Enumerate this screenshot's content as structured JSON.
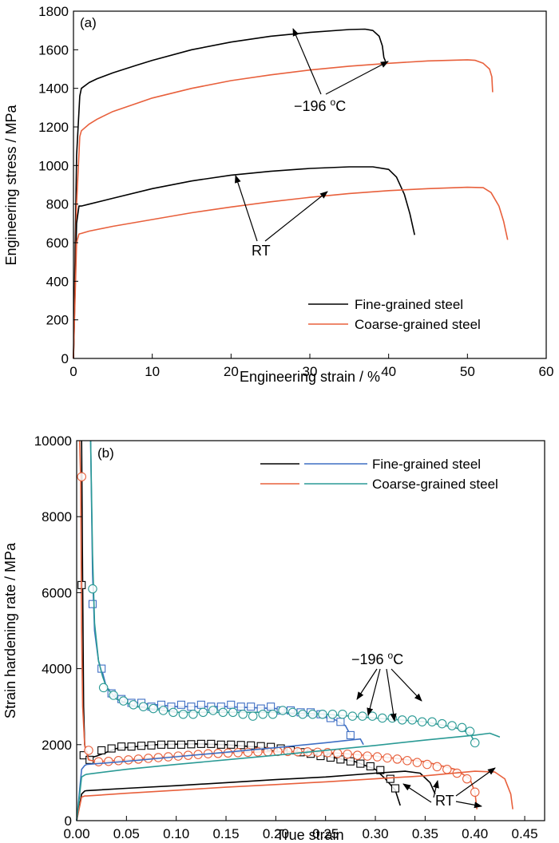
{
  "chart_data": [
    {
      "type": "line",
      "panel_label": "(a)",
      "xlabel": "Engineering strain / %",
      "ylabel": "Engineering stress / MPa",
      "xlim": [
        0,
        60
      ],
      "ylim": [
        0,
        1800
      ],
      "xticks": [
        "0",
        "10",
        "20",
        "30",
        "40",
        "50",
        "60"
      ],
      "yticks": [
        "0",
        "200",
        "400",
        "600",
        "800",
        "1000",
        "1200",
        "1400",
        "1600",
        "1800"
      ],
      "legend": [
        {
          "name": "Fine-grained steel",
          "color": "#000000"
        },
        {
          "name": "Coarse-grained steel",
          "color": "#E8603C"
        }
      ],
      "series": [
        {
          "name": "Fine-grained steel",
          "condition": "-196 °C",
          "color": "#000000",
          "x": [
            0,
            0.4,
            0.8,
            1,
            2,
            3,
            5,
            8,
            10,
            15,
            20,
            25,
            30,
            35,
            37,
            38,
            38.8,
            39.2,
            39.4,
            39.6
          ],
          "y": [
            0,
            1050,
            1360,
            1400,
            1430,
            1450,
            1480,
            1520,
            1545,
            1600,
            1640,
            1670,
            1690,
            1705,
            1707,
            1700,
            1670,
            1620,
            1560,
            1540
          ]
        },
        {
          "name": "Coarse-grained steel",
          "condition": "-196 °C",
          "color": "#E8603C",
          "x": [
            0,
            0.4,
            0.8,
            1,
            2,
            3,
            5,
            10,
            15,
            20,
            25,
            30,
            35,
            40,
            45,
            50,
            51,
            52,
            52.8,
            53.1,
            53.2
          ],
          "y": [
            0,
            800,
            1150,
            1180,
            1215,
            1240,
            1280,
            1350,
            1400,
            1440,
            1470,
            1495,
            1515,
            1530,
            1542,
            1548,
            1545,
            1530,
            1500,
            1460,
            1380
          ]
        },
        {
          "name": "Fine-grained steel",
          "condition": "RT",
          "color": "#000000",
          "x": [
            0,
            0.4,
            0.7,
            1,
            2,
            5,
            10,
            15,
            20,
            25,
            30,
            35,
            38,
            40,
            41,
            42,
            42.7,
            43.3
          ],
          "y": [
            0,
            700,
            790,
            790,
            800,
            830,
            880,
            920,
            950,
            970,
            985,
            993,
            993,
            980,
            940,
            850,
            750,
            640
          ]
        },
        {
          "name": "Coarse-grained steel",
          "condition": "RT",
          "color": "#E8603C",
          "x": [
            0,
            0.4,
            0.7,
            1,
            2,
            5,
            10,
            15,
            20,
            25,
            30,
            35,
            40,
            45,
            50,
            52,
            53,
            54,
            54.6,
            55.1
          ],
          "y": [
            0,
            600,
            645,
            648,
            660,
            685,
            720,
            755,
            785,
            812,
            835,
            855,
            870,
            880,
            887,
            885,
            860,
            790,
            710,
            615
          ]
        }
      ],
      "annotations": [
        {
          "text_prefix": "−196 ",
          "text_sup": "o",
          "text_suffix": "C",
          "points_to": [
            [
              28,
              1705
            ],
            [
              41,
              1535
            ]
          ]
        },
        {
          "text": "RT",
          "points_to": [
            [
              21,
              945
            ],
            [
              33,
              860
            ]
          ]
        }
      ]
    },
    {
      "type": "line",
      "panel_label": "(b)",
      "xlabel": "True strain",
      "ylabel": "Strain hardening rate / MPa",
      "xlim": [
        0,
        0.47
      ],
      "ylim": [
        0,
        10000
      ],
      "xticks": [
        "0.00",
        "0.05",
        "0.10",
        "0.15",
        "0.20",
        "0.25",
        "0.30",
        "0.35",
        "0.40",
        "0.45"
      ],
      "yticks": [
        "0",
        "2000",
        "4000",
        "6000",
        "8000",
        "10000"
      ],
      "legend": [
        {
          "name": "Fine-grained steel",
          "colors": [
            "#000000",
            "#3F6FC4"
          ]
        },
        {
          "name": "Coarse-grained steel",
          "colors": [
            "#E8603C",
            "#2A9A95"
          ]
        }
      ],
      "series": [
        {
          "name": "Fine-grained steel",
          "condition": "RT",
          "color": "#000000",
          "marker": "square",
          "x": [
            0.005,
            0.006,
            0.007,
            0.008,
            0.01,
            0.013,
            0.02,
            0.04,
            0.08,
            0.12,
            0.15,
            0.2,
            0.25,
            0.28,
            0.3,
            0.31,
            0.32,
            0.325
          ],
          "y": [
            10000,
            6200,
            3000,
            2000,
            1750,
            1650,
            1700,
            1900,
            2000,
            2020,
            2000,
            1900,
            1700,
            1550,
            1350,
            1100,
            800,
            400
          ],
          "markers": {
            "x": [
              0.005,
              0.007,
              0.013,
              0.025,
              0.035,
              0.045,
              0.055,
              0.065,
              0.075,
              0.085,
              0.095,
              0.105,
              0.115,
              0.125,
              0.135,
              0.145,
              0.155,
              0.165,
              0.175,
              0.185,
              0.195,
              0.205,
              0.215,
              0.225,
              0.235,
              0.245,
              0.255,
              0.265,
              0.275,
              0.285,
              0.295,
              0.305,
              0.315,
              0.32
            ],
            "y": [
              6200,
              1720,
              1600,
              1850,
              1900,
              1950,
              1950,
              1970,
              1980,
              2000,
              2000,
              2000,
              2010,
              2020,
              2020,
              2000,
              2000,
              1990,
              1980,
              1960,
              1940,
              1900,
              1850,
              1800,
              1760,
              1700,
              1660,
              1610,
              1560,
              1500,
              1430,
              1330,
              1100,
              850
            ]
          }
        },
        {
          "name": "Fine-grained steel",
          "condition": "-196 °C",
          "color": "#3F6FC4",
          "marker": "square",
          "x": [
            0.014,
            0.016,
            0.018,
            0.022,
            0.026,
            0.03,
            0.04,
            0.06,
            0.1,
            0.15,
            0.2,
            0.23,
            0.26,
            0.27,
            0.275
          ],
          "y": [
            10000,
            6500,
            5000,
            4200,
            3900,
            3500,
            3300,
            3100,
            3000,
            3000,
            2950,
            2850,
            2650,
            2500,
            2250
          ],
          "markers": {
            "x": [
              0.016,
              0.025,
              0.035,
              0.045,
              0.055,
              0.065,
              0.075,
              0.085,
              0.095,
              0.105,
              0.115,
              0.125,
              0.135,
              0.145,
              0.155,
              0.165,
              0.175,
              0.185,
              0.195,
              0.205,
              0.215,
              0.225,
              0.235,
              0.245,
              0.255,
              0.265,
              0.275
            ],
            "y": [
              5700,
              4000,
              3350,
              3200,
              3100,
              3100,
              3000,
              3050,
              3000,
              3050,
              3000,
              3050,
              3000,
              3000,
              3050,
              3000,
              3000,
              2950,
              3000,
              2900,
              2900,
              2850,
              2850,
              2800,
              2700,
              2600,
              2250
            ]
          }
        },
        {
          "name": "Coarse-grained steel",
          "condition": "RT",
          "color": "#E8603C",
          "marker": "circle",
          "x": [
            0.003,
            0.004,
            0.005,
            0.006,
            0.008,
            0.012,
            0.02,
            0.05,
            0.1,
            0.15,
            0.2,
            0.25,
            0.3,
            0.35,
            0.38,
            0.395,
            0.4,
            0.402
          ],
          "y": [
            10000,
            9000,
            5000,
            3000,
            2000,
            1600,
            1550,
            1600,
            1700,
            1780,
            1820,
            1800,
            1700,
            1550,
            1350,
            1100,
            750,
            300
          ],
          "markers": {
            "x": [
              0.005,
              0.012,
              0.022,
              0.032,
              0.042,
              0.052,
              0.062,
              0.072,
              0.082,
              0.092,
              0.102,
              0.112,
              0.122,
              0.132,
              0.142,
              0.152,
              0.162,
              0.172,
              0.182,
              0.192,
              0.202,
              0.212,
              0.222,
              0.232,
              0.242,
              0.252,
              0.262,
              0.272,
              0.282,
              0.292,
              0.302,
              0.312,
              0.322,
              0.332,
              0.342,
              0.352,
              0.362,
              0.372,
              0.382,
              0.392,
              0.4
            ],
            "y": [
              9050,
              1850,
              1550,
              1560,
              1580,
              1600,
              1620,
              1640,
              1660,
              1680,
              1700,
              1720,
              1740,
              1760,
              1770,
              1780,
              1790,
              1800,
              1810,
              1815,
              1820,
              1820,
              1815,
              1810,
              1800,
              1790,
              1770,
              1750,
              1720,
              1700,
              1680,
              1650,
              1620,
              1580,
              1530,
              1480,
              1420,
              1350,
              1250,
              1100,
              750
            ]
          }
        },
        {
          "name": "Coarse-grained steel",
          "condition": "-196 °C",
          "color": "#2A9A95",
          "marker": "circle",
          "x": [
            0.014,
            0.016,
            0.018,
            0.022,
            0.026,
            0.03,
            0.04,
            0.06,
            0.1,
            0.15,
            0.2,
            0.25,
            0.3,
            0.35,
            0.38,
            0.395,
            0.4
          ],
          "y": [
            10000,
            7000,
            5200,
            4200,
            3800,
            3500,
            3200,
            3000,
            2850,
            2850,
            2850,
            2800,
            2700,
            2600,
            2450,
            2300,
            2050
          ],
          "markers": {
            "x": [
              0.016,
              0.027,
              0.037,
              0.047,
              0.057,
              0.067,
              0.077,
              0.087,
              0.097,
              0.107,
              0.117,
              0.127,
              0.137,
              0.147,
              0.157,
              0.167,
              0.177,
              0.187,
              0.197,
              0.207,
              0.217,
              0.227,
              0.237,
              0.247,
              0.257,
              0.267,
              0.277,
              0.287,
              0.297,
              0.307,
              0.317,
              0.327,
              0.337,
              0.347,
              0.357,
              0.367,
              0.377,
              0.387,
              0.395,
              0.4
            ],
            "y": [
              6100,
              3500,
              3300,
              3150,
              3050,
              3000,
              2950,
              2900,
              2850,
              2800,
              2800,
              2850,
              2900,
              2850,
              2850,
              2800,
              2750,
              2800,
              2800,
              2900,
              2850,
              2800,
              2800,
              2800,
              2800,
              2800,
              2750,
              2750,
              2750,
              2700,
              2700,
              2650,
              2650,
              2600,
              2600,
              2550,
              2500,
              2450,
              2350,
              2050
            ]
          }
        },
        {
          "name": "Fine-grained steel",
          "condition": "RT",
          "color": "#000000",
          "marker": "none",
          "x": [
            0,
            0.005,
            0.008,
            0.01,
            0.05,
            0.1,
            0.15,
            0.2,
            0.25,
            0.3,
            0.33,
            0.345,
            0.355,
            0.36
          ],
          "y": [
            0,
            700,
            780,
            790,
            850,
            920,
            1000,
            1080,
            1150,
            1250,
            1300,
            1250,
            1000,
            700
          ]
        },
        {
          "name": "Coarse-grained steel",
          "condition": "RT",
          "color": "#E8603C",
          "marker": "none",
          "x": [
            0,
            0.005,
            0.008,
            0.01,
            0.05,
            0.1,
            0.15,
            0.2,
            0.25,
            0.3,
            0.35,
            0.4,
            0.42,
            0.43,
            0.436,
            0.438
          ],
          "y": [
            0,
            620,
            650,
            650,
            720,
            800,
            880,
            950,
            1020,
            1100,
            1180,
            1300,
            1280,
            1100,
            700,
            300
          ]
        },
        {
          "name": "Fine-grained steel",
          "condition": "-196 °C",
          "color": "#3F6FC4",
          "marker": "none",
          "x": [
            0,
            0.005,
            0.008,
            0.01,
            0.05,
            0.1,
            0.15,
            0.2,
            0.25,
            0.285,
            0.288
          ],
          "y": [
            0,
            1350,
            1450,
            1480,
            1560,
            1680,
            1800,
            1920,
            2050,
            2150,
            2000
          ]
        },
        {
          "name": "Coarse-grained steel",
          "condition": "-196 °C",
          "color": "#2A9A95",
          "marker": "none",
          "x": [
            0,
            0.005,
            0.008,
            0.01,
            0.05,
            0.1,
            0.15,
            0.2,
            0.25,
            0.3,
            0.35,
            0.4,
            0.415,
            0.425
          ],
          "y": [
            0,
            1150,
            1200,
            1220,
            1350,
            1480,
            1600,
            1720,
            1850,
            1980,
            2120,
            2250,
            2300,
            2200
          ]
        }
      ],
      "annotations": [
        {
          "text_prefix": "−196 ",
          "text_sup": "o",
          "text_suffix": "C",
          "points_to": [
            [
              0.27,
              2450
            ],
            [
              0.29,
              2200
            ],
            [
              0.34,
              2600
            ],
            [
              0.38,
              2500
            ]
          ]
        },
        {
          "text": "RT",
          "points_to": [
            [
              0.32,
              1000
            ],
            [
              0.36,
              1000
            ],
            [
              0.4,
              1050
            ],
            [
              0.41,
              1300
            ]
          ]
        }
      ]
    }
  ]
}
